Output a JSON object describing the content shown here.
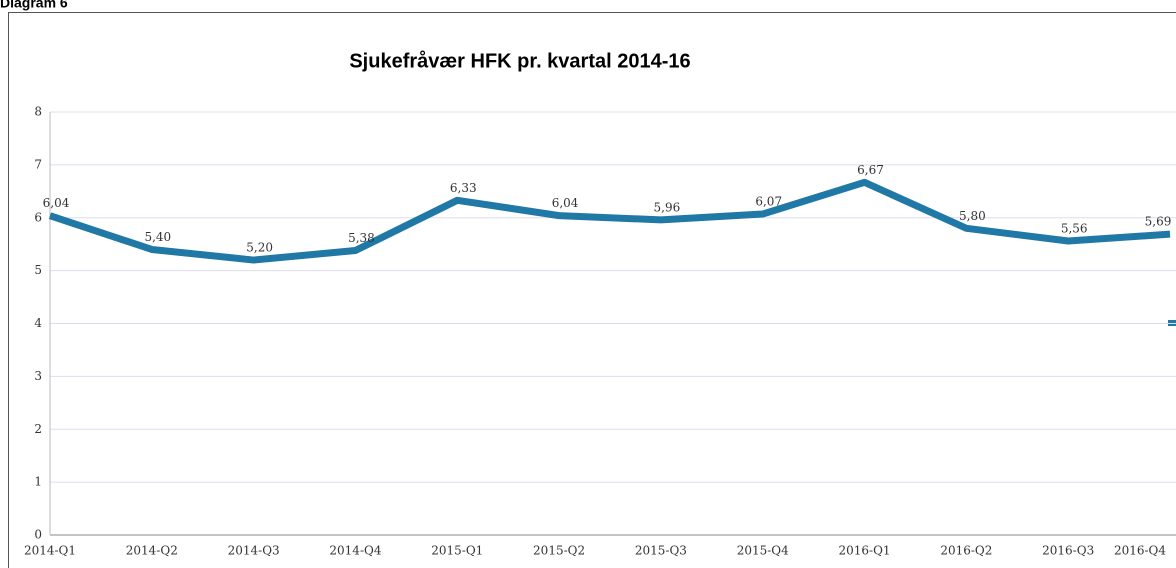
{
  "chart_data": {
    "type": "line",
    "caption": "Diagram 6",
    "title": "Sjukefråvær HFK pr. kvartal 2014-16",
    "categories": [
      "2014-Q1",
      "2014-Q2",
      "2014-Q3",
      "2014-Q4",
      "2015-Q1",
      "2015-Q2",
      "2015-Q3",
      "2015-Q4",
      "2016-Q1",
      "2016-Q2",
      "2016-Q3",
      "2016-Q4"
    ],
    "series": [
      {
        "color": "#1f78a6",
        "values": [
          6.04,
          5.4,
          5.2,
          5.38,
          6.33,
          6.04,
          5.96,
          6.07,
          6.67,
          5.8,
          5.56,
          5.69
        ],
        "value_labels": [
          "6,04",
          "5,40",
          "5,20",
          "5,38",
          "6,33",
          "6,04",
          "5,96",
          "6,07",
          "6,67",
          "5,80",
          "5,56",
          "5,69"
        ]
      }
    ],
    "ylim": [
      0,
      8
    ],
    "yticks": [
      0,
      1,
      2,
      3,
      4,
      5,
      6,
      7,
      8
    ],
    "grid": true
  }
}
